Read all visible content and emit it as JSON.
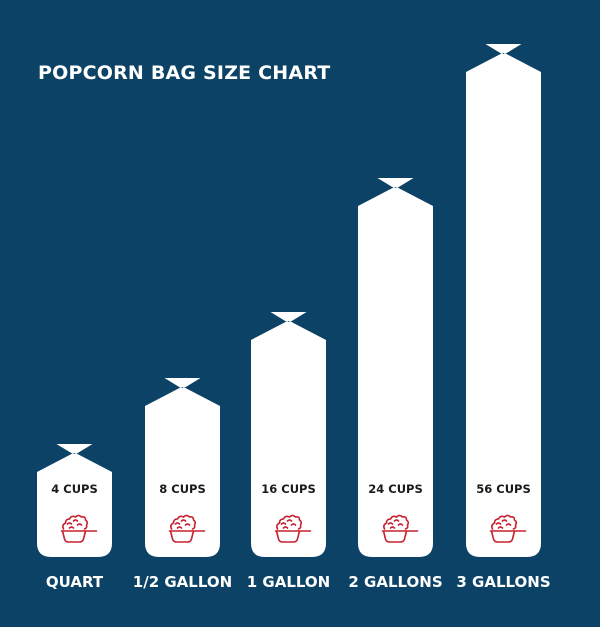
{
  "chart_data": {
    "type": "bar",
    "title": "POPCORN BAG SIZE CHART",
    "categories": [
      "QUART",
      "1/2 GALLON",
      "1 GALLON",
      "2 GALLONS",
      "3 GALLONS"
    ],
    "values": [
      4,
      8,
      16,
      24,
      56
    ],
    "value_labels": [
      "4 CUPS",
      "8 CUPS",
      "16 CUPS",
      "24 CUPS",
      "56 CUPS"
    ],
    "unit": "CUPS",
    "mark": "popcorn-bag",
    "icon": "popcorn-measuring-cup-icon",
    "grid": false,
    "colors": {
      "background": "#0c4266",
      "bag": "#ffffff",
      "icon": "#c8202f",
      "text": "#ffffff"
    }
  }
}
